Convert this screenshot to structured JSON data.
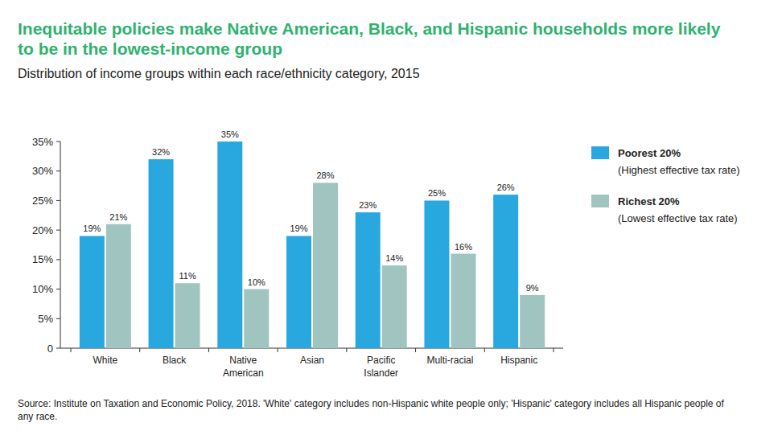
{
  "chart_data": {
    "type": "bar",
    "title": "Inequitable policies make Native American, Black, and Hispanic households more likely to be in the lowest-income group",
    "subtitle": "Distribution of income groups within each race/ethnicity category, 2015",
    "source": "Source: Institute on Taxation and Economic Policy, 2018. 'White' category includes non-Hispanic white people only; 'Hispanic' category includes all Hispanic people of any race.",
    "categories": [
      "White",
      "Black",
      "Native American",
      "Asian",
      "Pacific Islander",
      "Multi-racial",
      "Hispanic"
    ],
    "series": [
      {
        "name": "Poorest 20% (Highest effective tax rate)",
        "color": "#29a8e0",
        "values": [
          19,
          32,
          35,
          19,
          23,
          25,
          26
        ],
        "value_labels": [
          "19%",
          "32%",
          "35%",
          "19%",
          "23%",
          "25%",
          "26%"
        ]
      },
      {
        "name": "Richest 20% (Lowest effective tax rate)",
        "color": "#a0c4c0",
        "values": [
          21,
          11,
          10,
          28,
          14,
          16,
          9
        ],
        "value_labels": [
          "21%",
          "11%",
          "10%",
          "28%",
          "14%",
          "16%",
          "9%"
        ]
      }
    ],
    "ylim": [
      0,
      35
    ],
    "yticks": [
      0,
      {
        "value": 5,
        "label": "5%"
      },
      {
        "value": 10,
        "label": "10%"
      },
      {
        "value": 15,
        "label": "15%"
      },
      {
        "value": 20,
        "label": "20%"
      },
      {
        "value": 25,
        "label": "25%"
      },
      {
        "value": 30,
        "label": "30%"
      },
      {
        "value": 35,
        "label": "35%"
      }
    ],
    "grid": false,
    "legend": "right",
    "data_labels": true
  }
}
